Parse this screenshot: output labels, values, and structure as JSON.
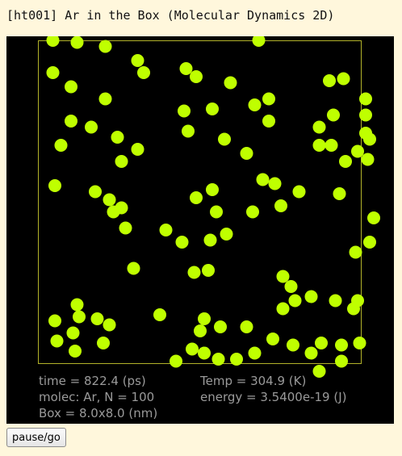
{
  "header": {
    "title": "[ht001] Ar in the Box (Molecular Dynamics 2D)"
  },
  "simulation": {
    "colors": {
      "background": "#000000",
      "box_border": "#b2b22a",
      "molecule": "#bfff00"
    },
    "box_size_nm": 8.0,
    "molecule_count": 100,
    "molecules": [
      [
        0.35,
        8.0
      ],
      [
        0.95,
        7.95
      ],
      [
        1.65,
        7.85
      ],
      [
        2.45,
        7.5
      ],
      [
        3.65,
        7.3
      ],
      [
        5.45,
        8.0
      ],
      [
        7.2,
        7.0
      ],
      [
        0.35,
        7.2
      ],
      [
        0.8,
        6.85
      ],
      [
        1.65,
        6.55
      ],
      [
        2.6,
        7.2
      ],
      [
        3.9,
        7.1
      ],
      [
        4.75,
        6.95
      ],
      [
        5.7,
        6.55
      ],
      [
        7.55,
        7.05
      ],
      [
        8.1,
        6.55
      ],
      [
        0.8,
        6.0
      ],
      [
        1.3,
        5.85
      ],
      [
        1.95,
        5.6
      ],
      [
        2.45,
        5.3
      ],
      [
        3.6,
        6.25
      ],
      [
        4.3,
        6.3
      ],
      [
        5.35,
        6.4
      ],
      [
        5.7,
        6.0
      ],
      [
        6.95,
        5.85
      ],
      [
        7.3,
        6.15
      ],
      [
        8.1,
        5.7
      ],
      [
        8.1,
        6.15
      ],
      [
        0.55,
        5.4
      ],
      [
        2.05,
        5.0
      ],
      [
        3.7,
        5.75
      ],
      [
        4.6,
        5.55
      ],
      [
        5.15,
        5.2
      ],
      [
        6.95,
        5.4
      ],
      [
        7.25,
        5.4
      ],
      [
        7.6,
        5.0
      ],
      [
        7.9,
        5.25
      ],
      [
        8.2,
        5.55
      ],
      [
        8.15,
        5.05
      ],
      [
        0.4,
        4.4
      ],
      [
        1.4,
        4.25
      ],
      [
        1.75,
        4.05
      ],
      [
        2.05,
        3.85
      ],
      [
        3.9,
        4.1
      ],
      [
        4.3,
        4.3
      ],
      [
        5.55,
        4.55
      ],
      [
        5.85,
        4.45
      ],
      [
        6.0,
        3.9
      ],
      [
        6.45,
        4.25
      ],
      [
        7.45,
        4.2
      ],
      [
        1.85,
        3.75
      ],
      [
        3.15,
        3.3
      ],
      [
        3.55,
        3.0
      ],
      [
        4.25,
        3.05
      ],
      [
        4.65,
        3.2
      ],
      [
        2.15,
        3.35
      ],
      [
        4.4,
        3.75
      ],
      [
        5.3,
        3.75
      ],
      [
        7.85,
        2.75
      ],
      [
        8.2,
        3.0
      ],
      [
        2.35,
        2.35
      ],
      [
        3.85,
        2.25
      ],
      [
        4.2,
        2.3
      ],
      [
        6.05,
        2.15
      ],
      [
        6.25,
        1.9
      ],
      [
        6.35,
        1.55
      ],
      [
        6.75,
        1.65
      ],
      [
        7.35,
        1.55
      ],
      [
        7.8,
        1.35
      ],
      [
        7.9,
        1.55
      ],
      [
        6.05,
        1.35
      ],
      [
        8.3,
        3.6
      ],
      [
        0.95,
        1.45
      ],
      [
        0.4,
        1.05
      ],
      [
        1.0,
        1.15
      ],
      [
        1.45,
        1.1
      ],
      [
        1.75,
        0.95
      ],
      [
        0.85,
        0.75
      ],
      [
        0.45,
        0.55
      ],
      [
        0.9,
        0.3
      ],
      [
        1.6,
        0.5
      ],
      [
        3.0,
        1.2
      ],
      [
        4.1,
        1.1
      ],
      [
        4.5,
        0.9
      ],
      [
        5.15,
        0.9
      ],
      [
        5.8,
        0.6
      ],
      [
        4.0,
        0.8
      ],
      [
        3.8,
        0.35
      ],
      [
        4.1,
        0.25
      ],
      [
        3.4,
        0.05
      ],
      [
        4.45,
        0.1
      ],
      [
        4.9,
        0.1
      ],
      [
        5.35,
        0.25
      ],
      [
        6.3,
        0.45
      ],
      [
        6.75,
        0.25
      ],
      [
        7.0,
        0.5
      ],
      [
        7.5,
        0.45
      ],
      [
        7.95,
        0.5
      ],
      [
        7.5,
        0.05
      ],
      [
        6.95,
        -0.2
      ]
    ]
  },
  "readout": {
    "time": "time = 822.4 (ps)",
    "temp": "Temp = 304.9 (K)",
    "molec": "molec: Ar, N = 100",
    "energy": "energy = 3.5400e-19 (J)",
    "box": "Box = 8.0x8.0 (nm)"
  },
  "controls": {
    "pause_label": "pause/go"
  }
}
